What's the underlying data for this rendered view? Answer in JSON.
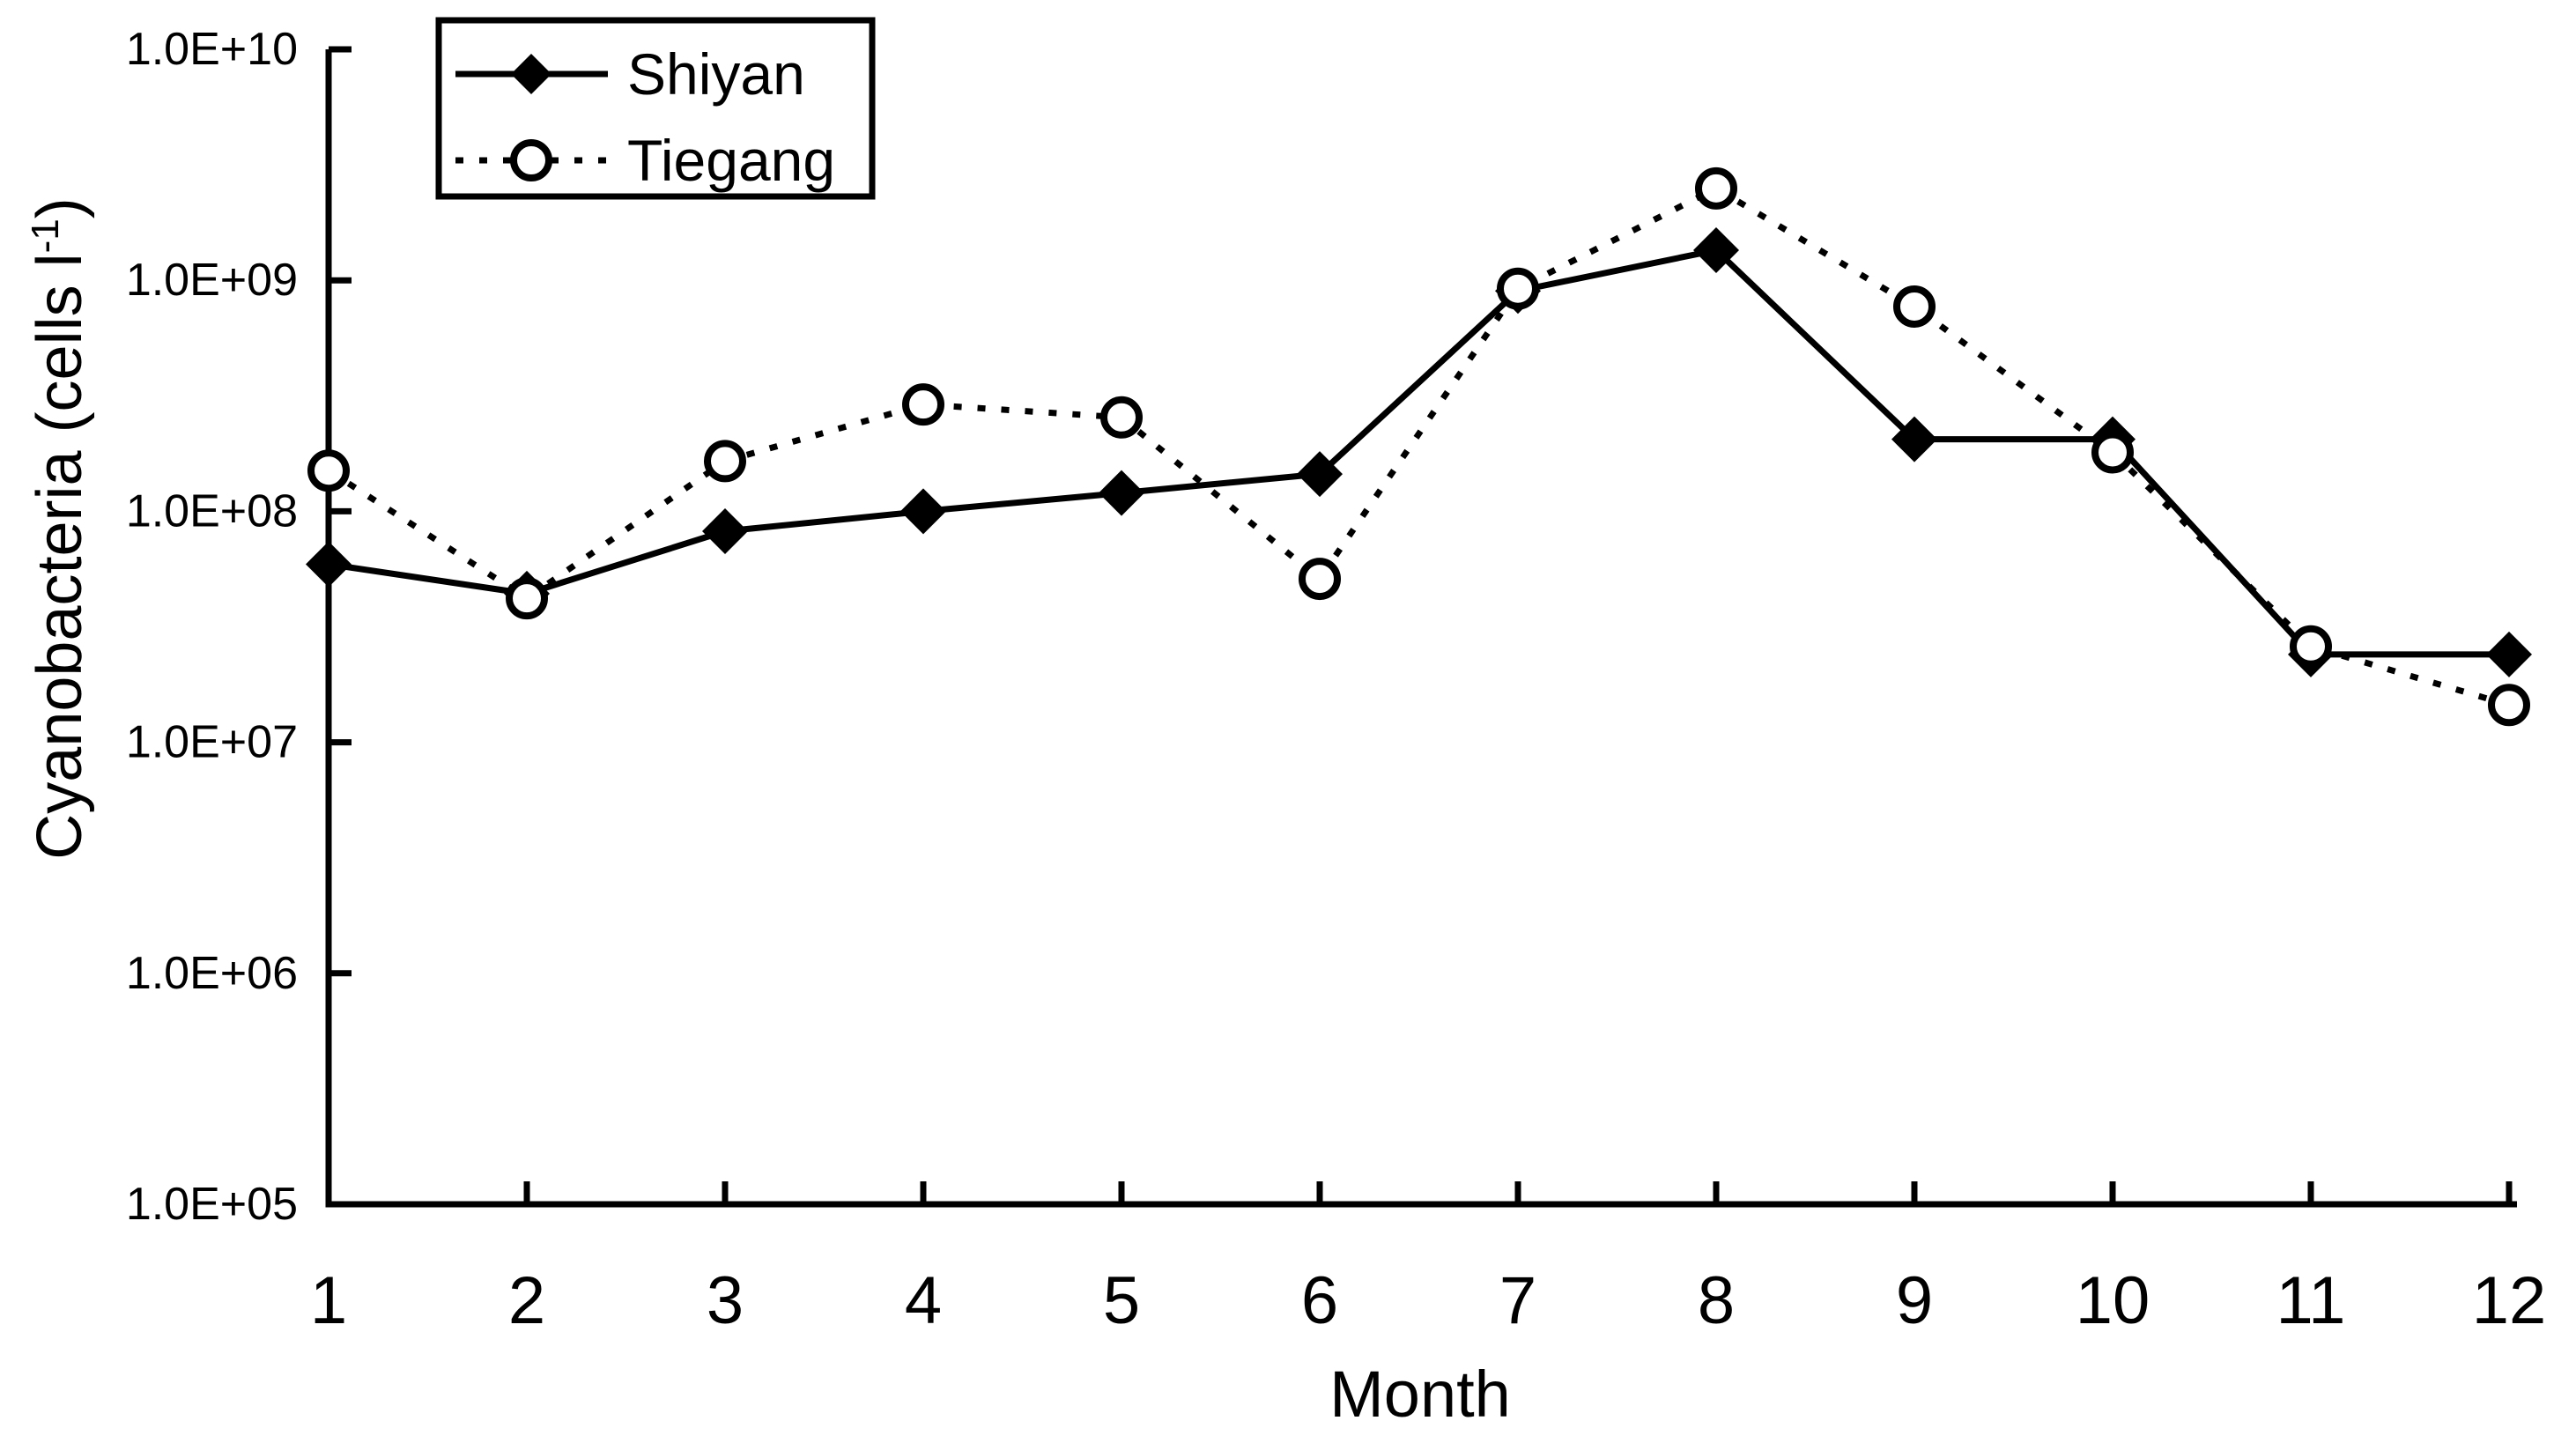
{
  "page": {
    "background": "#ffffff",
    "ink_color": "#000000"
  },
  "chart_data": {
    "type": "line",
    "title": "",
    "xlabel": "Month",
    "ylabel": "Cyanobacteria (cells l-1)",
    "ylabel_parts": {
      "prefix": "Cyanobacteria (cells l",
      "superscript": "-1",
      "suffix": ")"
    },
    "x": [
      1,
      2,
      3,
      4,
      5,
      6,
      7,
      8,
      9,
      10,
      11,
      12
    ],
    "x_tick_labels": [
      "1",
      "2",
      "3",
      "4",
      "5",
      "6",
      "7",
      "8",
      "9",
      "10",
      "11",
      "12"
    ],
    "yscale": "log",
    "ylim": [
      100000,
      10000000000
    ],
    "y_tick_values": [
      10000000000,
      1000000000,
      100000000,
      10000000,
      1000000,
      100000
    ],
    "y_tick_labels": [
      "1.0E+10",
      "1.0E+09",
      "1.0E+08",
      "1.0E+07",
      "1.0E+06",
      "1.0E+05"
    ],
    "grid": false,
    "legend_position": "top-left-inside",
    "series": [
      {
        "name": "Shiyan",
        "line_style": "solid",
        "marker": "filled-diamond",
        "color": "#000000",
        "values": [
          59000000,
          44000000,
          82000000,
          100000000,
          120000000,
          145000000,
          900000000,
          1350000000,
          205000000,
          205000000,
          24000000,
          24000000
        ]
      },
      {
        "name": "Tiegang",
        "line_style": "dotted",
        "marker": "open-circle",
        "color": "#000000",
        "values": [
          150000000,
          42000000,
          165000000,
          290000000,
          255000000,
          51000000,
          920000000,
          2500000000,
          770000000,
          180000000,
          26000000,
          14500000
        ]
      }
    ]
  }
}
